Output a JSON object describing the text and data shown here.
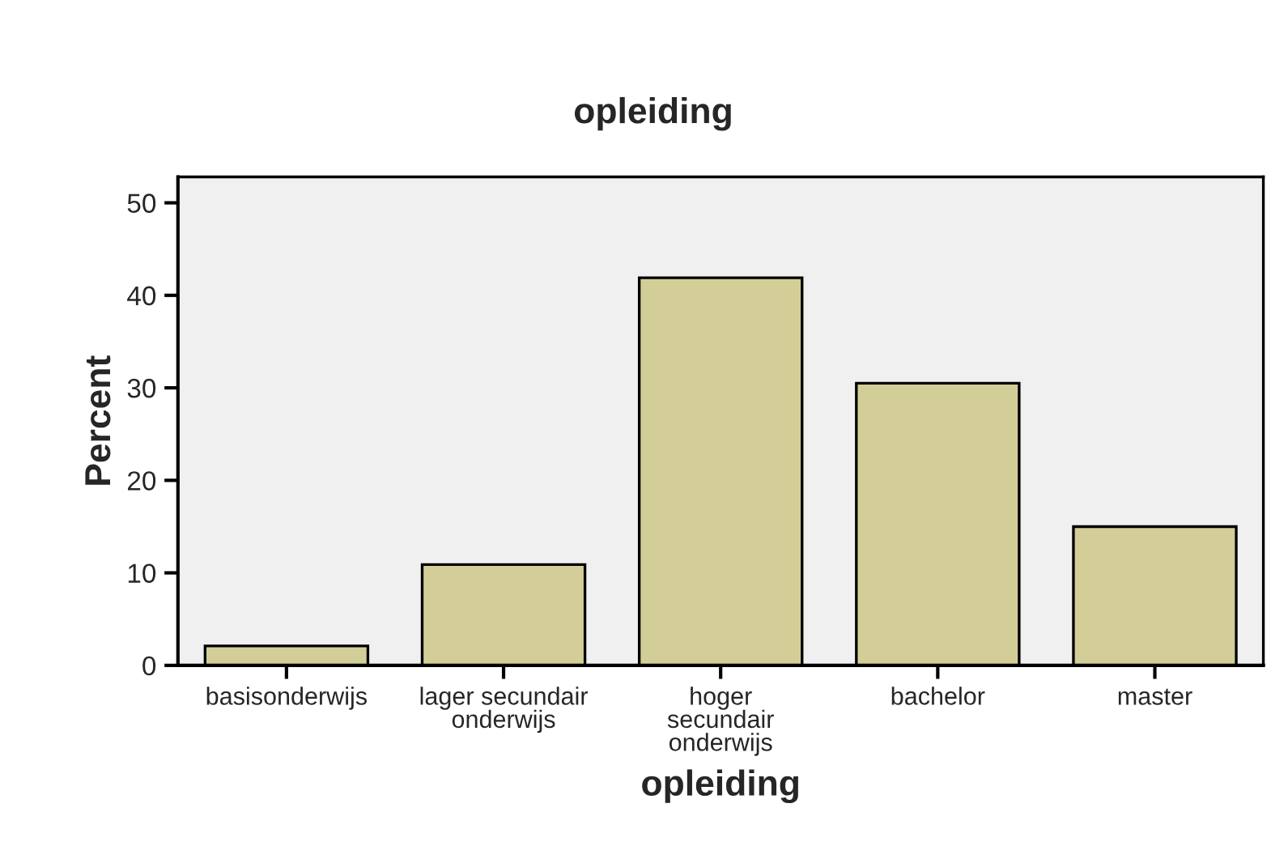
{
  "chart_data": {
    "type": "bar",
    "title": "opleiding",
    "xlabel": "opleiding",
    "ylabel": "Percent",
    "categories": [
      "basisonderwijs",
      "lager secundair\nonderwijs",
      "hoger\nsecundair\nonderwijs",
      "bachelor",
      "master"
    ],
    "values": [
      2.1,
      10.9,
      41.9,
      30.5,
      15.0
    ],
    "color": "#d3ce97",
    "ylim": [
      0,
      52.8
    ],
    "yticks": [
      0,
      10,
      20,
      30,
      40,
      50
    ],
    "grid": false
  }
}
